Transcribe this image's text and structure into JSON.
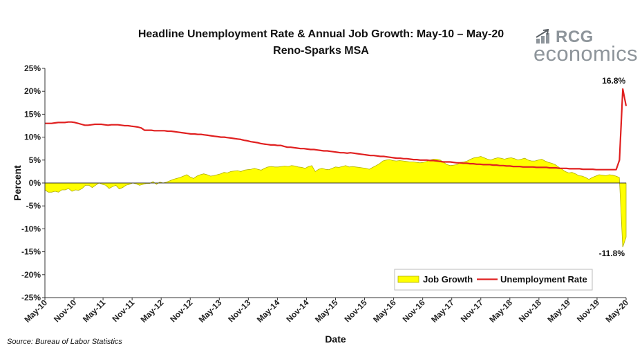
{
  "title_line1": "Headline Unemployment Rate & Annual Job Growth: May-10 – May-20",
  "title_line2": "Reno-Sparks MSA",
  "logo": {
    "line1": "RCG",
    "line2": "economics",
    "icon": "rising-arrow-icon",
    "color": "#8e959b"
  },
  "source": "Source: Bureau of Labor Statistics",
  "chart_data": {
    "type": "line",
    "xlabel": "Date",
    "ylabel": "Percent",
    "ylim": [
      -25,
      25
    ],
    "yticks": [
      -25,
      -20,
      -15,
      -10,
      -5,
      0,
      5,
      10,
      15,
      20,
      25
    ],
    "ytick_labels": [
      "-25%",
      "-20%",
      "-15%",
      "-10%",
      "-5%",
      "0%",
      "5%",
      "10%",
      "15%",
      "20%",
      "25%"
    ],
    "xtick_labels": [
      "May-10",
      "Nov-10",
      "May-11",
      "Nov-11",
      "May-12",
      "Nov-12",
      "May-13",
      "Nov-13",
      "May-14",
      "Nov-14",
      "May-15",
      "Nov-15",
      "May-16",
      "Nov-16",
      "May-17",
      "Nov-17",
      "May-18",
      "Nov-18",
      "May-19",
      "Nov-19",
      "May-20"
    ],
    "grid": false,
    "legend_position": "bottom-right",
    "series": [
      {
        "name": "Job Growth",
        "kind": "area",
        "color": "#ffff00",
        "edge_color": "#b0b000",
        "values": [
          -1.5,
          -2.0,
          -2.0,
          -1.8,
          -2.0,
          -1.5,
          -1.5,
          -1.2,
          -1.8,
          -1.5,
          -1.6,
          -1.2,
          -0.5,
          -0.5,
          -1.0,
          -0.5,
          0.0,
          -0.3,
          -0.5,
          -1.2,
          -0.8,
          -0.5,
          -1.3,
          -1.0,
          -0.5,
          -0.3,
          0.0,
          -0.2,
          -0.5,
          -0.3,
          -0.1,
          -0.1,
          0.3,
          -0.3,
          0.2,
          0.0,
          0.2,
          0.5,
          0.8,
          1.0,
          1.2,
          1.5,
          1.8,
          1.3,
          1.0,
          1.5,
          1.8,
          2.0,
          1.8,
          1.5,
          1.6,
          1.8,
          2.0,
          2.3,
          2.2,
          2.5,
          2.6,
          2.7,
          2.5,
          2.8,
          2.9,
          3.0,
          3.2,
          3.0,
          2.8,
          3.2,
          3.5,
          3.6,
          3.5,
          3.5,
          3.6,
          3.7,
          3.6,
          3.8,
          3.7,
          3.5,
          3.4,
          3.2,
          3.6,
          3.8,
          2.5,
          3.0,
          3.2,
          3.0,
          2.9,
          3.2,
          3.5,
          3.4,
          3.6,
          3.8,
          3.5,
          3.6,
          3.5,
          3.4,
          3.3,
          3.2,
          3.0,
          3.4,
          3.8,
          4.2,
          4.8,
          5.0,
          5.1,
          4.9,
          4.8,
          4.9,
          4.8,
          4.7,
          4.6,
          4.6,
          4.5,
          4.4,
          4.5,
          4.7,
          5.0,
          5.2,
          5.2,
          5.0,
          4.5,
          4.0,
          3.8,
          3.9,
          4.0,
          4.5,
          4.6,
          4.8,
          5.2,
          5.5,
          5.6,
          5.8,
          5.5,
          5.2,
          5.0,
          5.3,
          5.5,
          5.4,
          5.2,
          5.4,
          5.5,
          5.3,
          5.0,
          5.2,
          5.4,
          5.0,
          4.8,
          4.8,
          5.0,
          5.2,
          4.8,
          4.5,
          4.3,
          4.0,
          3.5,
          3.0,
          2.5,
          2.2,
          2.3,
          2.0,
          1.6,
          1.5,
          1.2,
          0.8,
          1.2,
          1.5,
          1.8,
          1.7,
          1.6,
          1.8,
          1.7,
          1.5,
          1.2,
          -14.0,
          -11.8
        ]
      },
      {
        "name": "Unemployment Rate",
        "kind": "line",
        "color": "#e02020",
        "values": [
          13.0,
          13.0,
          13.0,
          13.1,
          13.2,
          13.2,
          13.2,
          13.3,
          13.3,
          13.2,
          13.0,
          12.8,
          12.6,
          12.6,
          12.7,
          12.8,
          12.8,
          12.8,
          12.7,
          12.6,
          12.7,
          12.7,
          12.7,
          12.6,
          12.5,
          12.5,
          12.4,
          12.3,
          12.2,
          12.0,
          11.5,
          11.5,
          11.5,
          11.4,
          11.4,
          11.4,
          11.4,
          11.3,
          11.3,
          11.2,
          11.1,
          11.0,
          10.9,
          10.8,
          10.7,
          10.7,
          10.6,
          10.6,
          10.5,
          10.4,
          10.3,
          10.2,
          10.1,
          10.0,
          10.0,
          9.9,
          9.8,
          9.7,
          9.6,
          9.5,
          9.3,
          9.2,
          9.0,
          8.9,
          8.8,
          8.6,
          8.5,
          8.4,
          8.3,
          8.3,
          8.2,
          8.2,
          8.0,
          7.8,
          7.8,
          7.7,
          7.6,
          7.5,
          7.5,
          7.4,
          7.3,
          7.3,
          7.2,
          7.1,
          7.0,
          7.0,
          6.9,
          6.8,
          6.7,
          6.6,
          6.6,
          6.5,
          6.6,
          6.5,
          6.4,
          6.3,
          6.2,
          6.1,
          6.0,
          6.0,
          5.9,
          5.8,
          5.8,
          5.7,
          5.6,
          5.5,
          5.4,
          5.4,
          5.3,
          5.3,
          5.2,
          5.1,
          5.1,
          5.0,
          5.0,
          5.0,
          4.9,
          4.9,
          4.8,
          4.7,
          4.6,
          4.6,
          4.6,
          4.5,
          4.4,
          4.4,
          4.3,
          4.3,
          4.2,
          4.2,
          4.1,
          4.1,
          4.0,
          4.0,
          4.0,
          3.9,
          3.9,
          3.8,
          3.8,
          3.7,
          3.7,
          3.6,
          3.6,
          3.6,
          3.5,
          3.5,
          3.5,
          3.5,
          3.4,
          3.4,
          3.4,
          3.4,
          3.3,
          3.3,
          3.3,
          3.2,
          3.2,
          3.2,
          3.1,
          3.1,
          3.1,
          3.1,
          3.0,
          3.0,
          3.0,
          3.0,
          2.9,
          2.9,
          2.9,
          2.9,
          2.9,
          2.9,
          2.9,
          5.0,
          20.5,
          16.8
        ]
      }
    ],
    "annotations": [
      {
        "text": "16.8%",
        "series": "Unemployment Rate",
        "point": "last-peak",
        "value": 16.8
      },
      {
        "text": "-11.8%",
        "series": "Job Growth",
        "point": "last",
        "value": -11.8
      }
    ]
  }
}
